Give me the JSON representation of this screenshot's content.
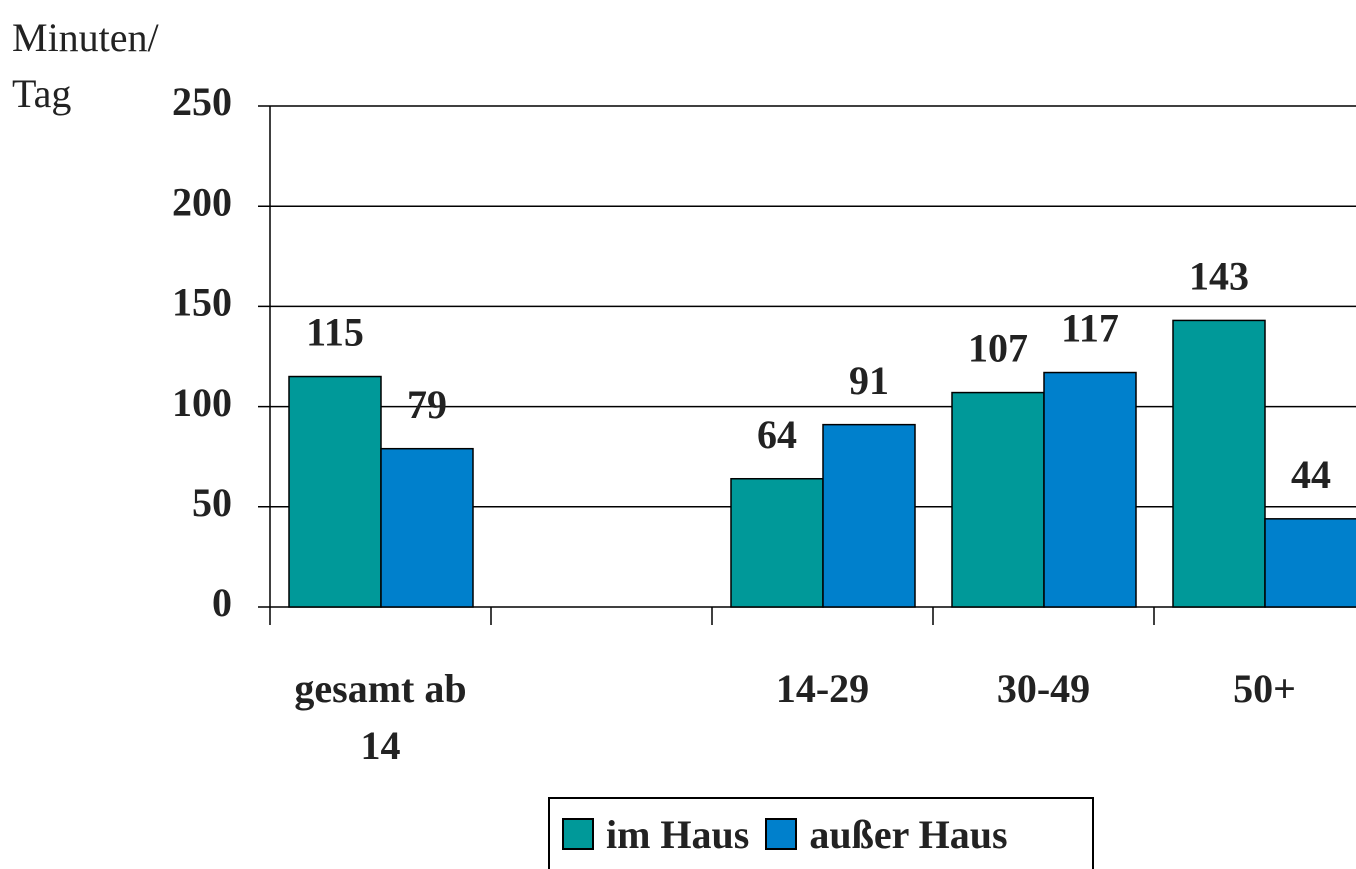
{
  "chart_data": {
    "type": "bar",
    "ylabel": "Minuten/ Tag",
    "categories": [
      "gesamt ab 14",
      null,
      "14-29",
      "30-49",
      "50+"
    ],
    "series": [
      {
        "name": "im Haus",
        "color": "#009999",
        "values": [
          115,
          null,
          64,
          107,
          143
        ]
      },
      {
        "name": "außer Haus",
        "color": "#0080cc",
        "values": [
          79,
          null,
          91,
          117,
          44
        ]
      }
    ],
    "ylim": [
      0,
      250
    ],
    "yticks": [
      0,
      50,
      100,
      150,
      200,
      250
    ],
    "grid": true,
    "legend": "bottom"
  }
}
